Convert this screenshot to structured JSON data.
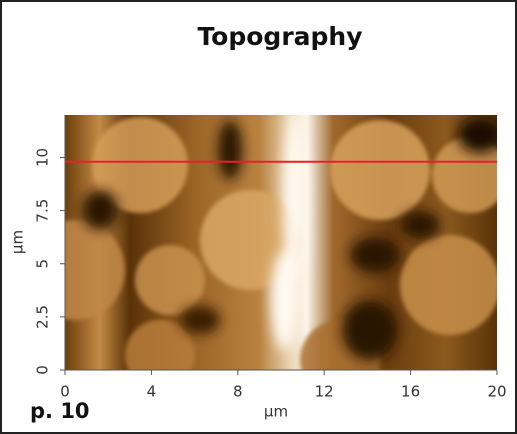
{
  "chart_data": {
    "type": "image",
    "title": "Topography",
    "x_label": "μm",
    "y_label": "μm",
    "xlim": [
      0,
      20
    ],
    "xticks": [
      0,
      4,
      8,
      12,
      16,
      20
    ],
    "ylim": [
      0,
      12
    ],
    "yticks": [
      0,
      2.5,
      5,
      7.5,
      10
    ],
    "line": {
      "y": 9.8,
      "color": "#e8202a"
    },
    "annotation": "p. 10"
  }
}
